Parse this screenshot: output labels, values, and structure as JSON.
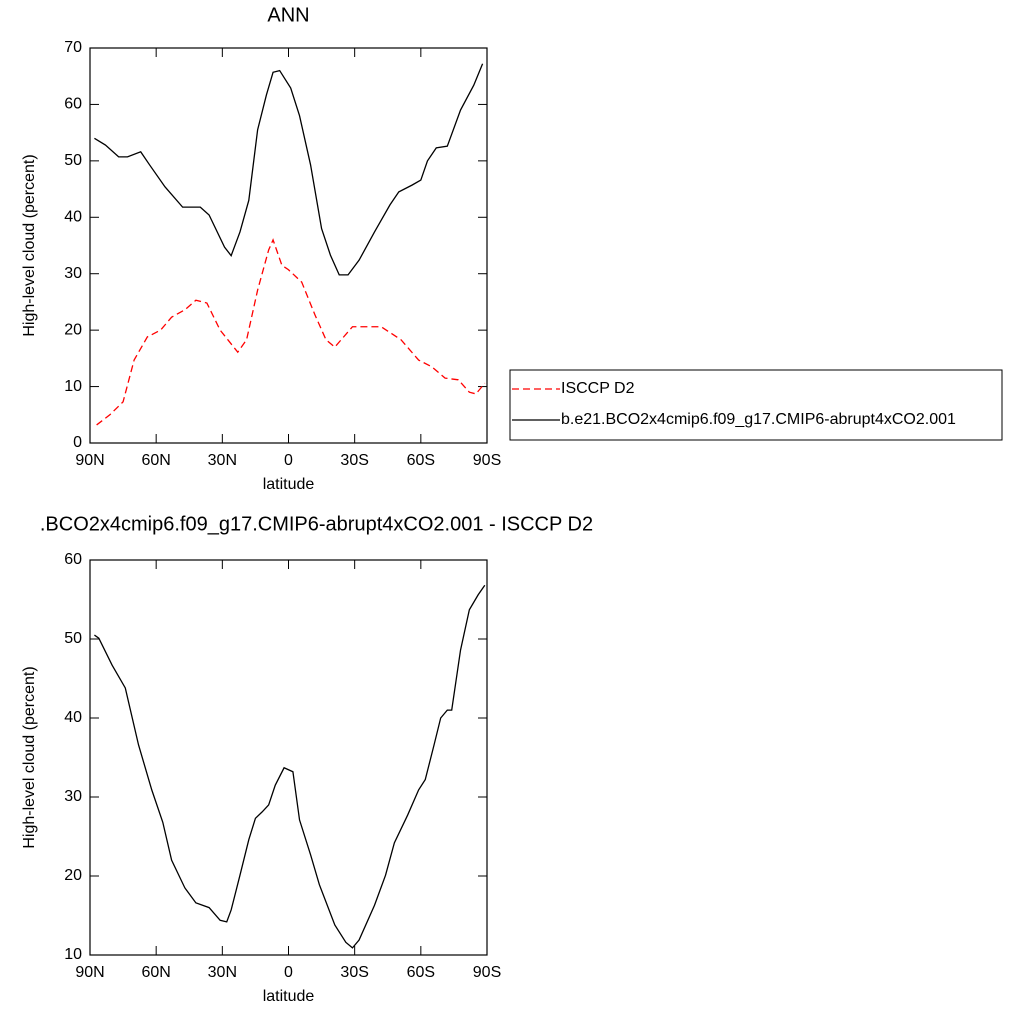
{
  "chart_data": [
    {
      "type": "line",
      "title": "ANN",
      "x_label": "latitude",
      "y_label": "High-level cloud (percent)",
      "xlim": [
        90,
        -90
      ],
      "xticks": [
        {
          "value": 90,
          "label": "90N"
        },
        {
          "value": 60,
          "label": "60N"
        },
        {
          "value": 30,
          "label": "30N"
        },
        0,
        {
          "value": -30,
          "label": "30S"
        },
        {
          "value": -60,
          "label": "60S"
        },
        {
          "value": -90,
          "label": "90S"
        }
      ],
      "ylim": [
        0,
        70
      ],
      "yticks": [
        0,
        10,
        20,
        30,
        40,
        50,
        60,
        70
      ],
      "legend": "right",
      "series": [
        {
          "name": "ISCCP D2",
          "color": "#ff0000",
          "line_style": "dashed",
          "x": [
            87,
            81,
            75,
            70,
            64,
            58,
            53,
            47,
            42,
            37,
            31,
            23,
            19,
            14,
            9,
            7,
            3,
            0,
            -6,
            -12,
            -17,
            -21,
            -29,
            -42,
            -51,
            -59,
            -65,
            -71,
            -77,
            -82,
            -85,
            -89
          ],
          "values": [
            3.2,
            5,
            7.3,
            14.7,
            18.8,
            20,
            22.3,
            23.6,
            25.3,
            24.8,
            20,
            16.1,
            18.3,
            27.1,
            34.2,
            36,
            31.5,
            30.7,
            28.5,
            22.7,
            18.3,
            17,
            20.6,
            20.6,
            18.3,
            14.7,
            13.5,
            11.5,
            11.2,
            9,
            8.7,
            10.6
          ]
        },
        {
          "name": "b.e21.BCO2x4cmip6.f09_g17.CMIP6-abrupt4xCO2.001",
          "color": "#000000",
          "line_style": "solid",
          "x": [
            88,
            83,
            77,
            73,
            67,
            63,
            56,
            48,
            40,
            36,
            29,
            26,
            22,
            18,
            14,
            10,
            7,
            4,
            -1,
            -5,
            -10,
            -15,
            -19,
            -23,
            -27,
            -32,
            -39,
            -46,
            -50,
            -56,
            -60,
            -63,
            -67,
            -72,
            -78,
            -84,
            -88
          ],
          "values": [
            54,
            52.8,
            50.7,
            50.7,
            51.6,
            49.3,
            45.4,
            41.8,
            41.8,
            40.4,
            34.7,
            33.2,
            37.4,
            43,
            55.5,
            61.7,
            65.7,
            66,
            62.9,
            58,
            49.3,
            38,
            33.3,
            29.8,
            29.8,
            32.4,
            37.4,
            42.2,
            44.5,
            45.7,
            46.6,
            50,
            52.3,
            52.6,
            59,
            63.4,
            67.2
          ]
        }
      ]
    },
    {
      "type": "line",
      "title": ".BCO2x4cmip6.f09_g17.CMIP6-abrupt4xCO2.001 - ISCCP D2",
      "x_label": "latitude",
      "y_label": "High-level cloud (percent)",
      "xlim": [
        90,
        -90
      ],
      "xticks": [
        {
          "value": 90,
          "label": "90N"
        },
        {
          "value": 60,
          "label": "60N"
        },
        {
          "value": 30,
          "label": "30N"
        },
        0,
        {
          "value": -30,
          "label": "30S"
        },
        {
          "value": -60,
          "label": "60S"
        },
        {
          "value": -90,
          "label": "90S"
        }
      ],
      "ylim": [
        10,
        60
      ],
      "yticks": [
        10,
        20,
        30,
        40,
        50,
        60
      ],
      "series": [
        {
          "color": "#000000",
          "line_style": "solid",
          "x": [
            88,
            86,
            80,
            74,
            68,
            62,
            57,
            53,
            47,
            42,
            36,
            31,
            28,
            26,
            22,
            18,
            15,
            12,
            9,
            6,
            2,
            -2,
            -5,
            -10,
            -14,
            -21,
            -26,
            -29,
            -32,
            -39,
            -44,
            -48,
            -54,
            -59,
            -62,
            -66,
            -69,
            -72,
            -74,
            -78,
            -82,
            -86,
            -89
          ],
          "values": [
            50.5,
            50.1,
            46.7,
            43.8,
            36.6,
            30.9,
            26.8,
            22,
            18.5,
            16.6,
            16,
            14.4,
            14.2,
            15.7,
            20.1,
            24.6,
            27.3,
            28.1,
            29,
            31.5,
            33.7,
            33.2,
            27.1,
            22.7,
            18.9,
            13.8,
            11.6,
            10.9,
            11.9,
            16.3,
            20.1,
            24.2,
            27.7,
            30.9,
            32.2,
            36.6,
            40,
            41,
            41,
            48.6,
            53.7,
            55.6,
            56.8
          ]
        }
      ]
    }
  ]
}
